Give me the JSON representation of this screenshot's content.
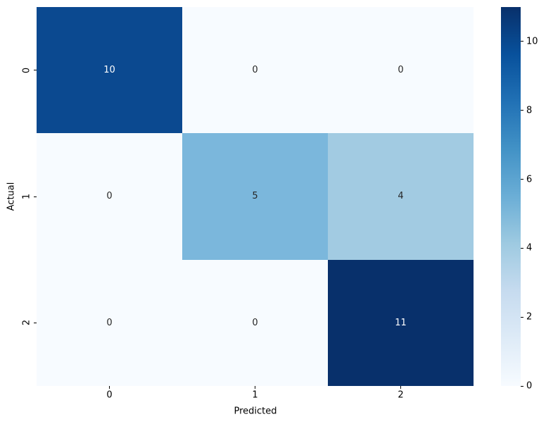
{
  "chart_data": {
    "type": "heatmap",
    "title": "",
    "xlabel": "Predicted",
    "ylabel": "Actual",
    "x_tick_labels": [
      "0",
      "1",
      "2"
    ],
    "y_tick_labels": [
      "0",
      "1",
      "2"
    ],
    "matrix": [
      [
        10,
        0,
        0
      ],
      [
        0,
        5,
        4
      ],
      [
        0,
        0,
        11
      ]
    ],
    "cell_colors": [
      [
        "#0b4990",
        "#f7fbff",
        "#f7fbff"
      ],
      [
        "#f7fbff",
        "#7bb7dc",
        "#a2cbe2"
      ],
      [
        "#f7fbff",
        "#f7fbff",
        "#08306b"
      ]
    ],
    "cell_text_colors": [
      [
        "#ffffff",
        "#262626",
        "#262626"
      ],
      [
        "#262626",
        "#262626",
        "#262626"
      ],
      [
        "#262626",
        "#262626",
        "#ffffff"
      ]
    ],
    "vmin": 0,
    "vmax": 11,
    "colormap": "Blues",
    "grid": false,
    "legend_position": "right-colorbar",
    "colorbar": {
      "tick_values": [
        0,
        2,
        4,
        6,
        8,
        10
      ],
      "gradient_stops": [
        "#f7fbff",
        "#deebf7",
        "#c6dbef",
        "#9ecae1",
        "#6baed6",
        "#4292c6",
        "#2171b5",
        "#08519c",
        "#08306b"
      ]
    }
  }
}
